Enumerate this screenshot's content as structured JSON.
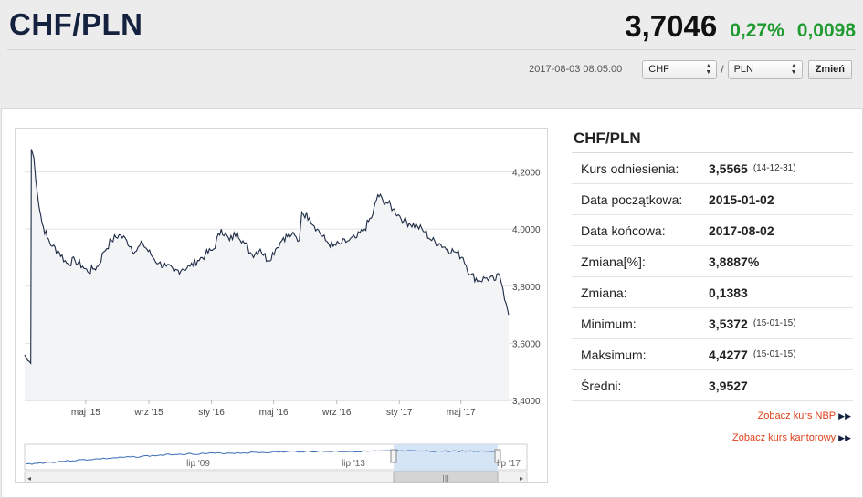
{
  "header": {
    "pair": "CHF/PLN",
    "rate": "3,7046",
    "change_pct": "0,27%",
    "change_abs": "0,0098",
    "timestamp": "2017-08-03 08:05:00"
  },
  "controls": {
    "base_currency": "CHF",
    "separator": "/",
    "quote_currency": "PLN",
    "change_label": "Zmień"
  },
  "colors": {
    "line": "#1d2b45",
    "area": "#f3f4f6",
    "positive": "#1e9a2f",
    "link": "#e0401b",
    "navigator_selection": "#cfe0f5"
  },
  "stats": {
    "title": "CHF/PLN",
    "rows": [
      {
        "label": "Kurs odniesienia:",
        "value": "3,5565",
        "date": "(14-12-31)"
      },
      {
        "label": "Data początkowa:",
        "value": "2015-01-02",
        "date": ""
      },
      {
        "label": "Data końcowa:",
        "value": "2017-08-02",
        "date": ""
      },
      {
        "label": "Zmiana[%]:",
        "value": "3,8887%",
        "date": ""
      },
      {
        "label": "Zmiana:",
        "value": "0,1383",
        "date": ""
      },
      {
        "label": "Minimum:",
        "value": "3,5372",
        "date": "(15-01-15)"
      },
      {
        "label": "Maksimum:",
        "value": "4,4277",
        "date": "(15-01-15)"
      },
      {
        "label": "Średni:",
        "value": "3,9527",
        "date": ""
      }
    ],
    "link_nbp": "Zobacz kurs NBP",
    "link_kantor": "Zobacz kurs kantorowy"
  },
  "chart_data": {
    "type": "area",
    "x_start": "2015-01-02",
    "x_end": "2017-08-02",
    "ylim": [
      3.4,
      4.32
    ],
    "y_ticks": [
      "4,2000",
      "4,0000",
      "3,8000",
      "3,6000",
      "3,4000"
    ],
    "y_tick_values": [
      4.2,
      4.0,
      3.8,
      3.6,
      3.4
    ],
    "x_ticks": [
      {
        "label": "maj '15",
        "date": "2015-05-01"
      },
      {
        "label": "wrz '15",
        "date": "2015-09-01"
      },
      {
        "label": "sty '16",
        "date": "2016-01-01"
      },
      {
        "label": "maj '16",
        "date": "2016-05-01"
      },
      {
        "label": "wrz '16",
        "date": "2016-09-01"
      },
      {
        "label": "sty '17",
        "date": "2017-01-01"
      },
      {
        "label": "maj '17",
        "date": "2017-05-01"
      }
    ],
    "series": [
      {
        "points": [
          [
            "2015-01-02",
            3.56
          ],
          [
            "2015-01-08",
            3.54
          ],
          [
            "2015-01-14",
            3.53
          ],
          [
            "2015-01-15",
            4.28
          ],
          [
            "2015-01-20",
            4.25
          ],
          [
            "2015-01-27",
            4.12
          ],
          [
            "2015-02-05",
            4.02
          ],
          [
            "2015-02-15",
            3.97
          ],
          [
            "2015-02-25",
            3.94
          ],
          [
            "2015-03-10",
            3.92
          ],
          [
            "2015-03-25",
            3.88
          ],
          [
            "2015-04-10",
            3.89
          ],
          [
            "2015-04-25",
            3.87
          ],
          [
            "2015-05-05",
            3.85
          ],
          [
            "2015-05-15",
            3.86
          ],
          [
            "2015-05-25",
            3.87
          ],
          [
            "2015-06-05",
            3.92
          ],
          [
            "2015-06-20",
            3.96
          ],
          [
            "2015-07-05",
            3.98
          ],
          [
            "2015-07-20",
            3.96
          ],
          [
            "2015-08-05",
            3.92
          ],
          [
            "2015-08-20",
            3.95
          ],
          [
            "2015-09-05",
            3.91
          ],
          [
            "2015-09-20",
            3.88
          ],
          [
            "2015-10-05",
            3.87
          ],
          [
            "2015-10-20",
            3.85
          ],
          [
            "2015-11-05",
            3.86
          ],
          [
            "2015-11-20",
            3.87
          ],
          [
            "2015-12-05",
            3.89
          ],
          [
            "2015-12-20",
            3.91
          ],
          [
            "2016-01-05",
            3.93
          ],
          [
            "2016-01-20",
            4.0
          ],
          [
            "2016-02-05",
            3.96
          ],
          [
            "2016-02-20",
            3.99
          ],
          [
            "2016-03-05",
            3.95
          ],
          [
            "2016-03-20",
            3.91
          ],
          [
            "2016-04-05",
            3.93
          ],
          [
            "2016-04-20",
            3.89
          ],
          [
            "2016-05-05",
            3.93
          ],
          [
            "2016-05-20",
            3.97
          ],
          [
            "2016-06-05",
            3.98
          ],
          [
            "2016-06-20",
            3.96
          ],
          [
            "2016-06-25",
            4.06
          ],
          [
            "2016-07-10",
            4.04
          ],
          [
            "2016-07-25",
            4.0
          ],
          [
            "2016-08-10",
            3.96
          ],
          [
            "2016-08-25",
            3.94
          ],
          [
            "2016-09-10",
            3.95
          ],
          [
            "2016-09-25",
            3.96
          ],
          [
            "2016-10-10",
            3.97
          ],
          [
            "2016-10-25",
            4.0
          ],
          [
            "2016-11-10",
            4.05
          ],
          [
            "2016-11-20",
            4.12
          ],
          [
            "2016-11-30",
            4.1
          ],
          [
            "2016-12-10",
            4.09
          ],
          [
            "2016-12-20",
            4.07
          ],
          [
            "2016-12-30",
            4.05
          ],
          [
            "2017-01-10",
            4.03
          ],
          [
            "2017-01-20",
            4.02
          ],
          [
            "2017-02-05",
            4.01
          ],
          [
            "2017-02-20",
            3.99
          ],
          [
            "2017-03-05",
            3.96
          ],
          [
            "2017-03-20",
            3.95
          ],
          [
            "2017-04-05",
            3.93
          ],
          [
            "2017-04-20",
            3.92
          ],
          [
            "2017-05-05",
            3.9
          ],
          [
            "2017-05-20",
            3.84
          ],
          [
            "2017-06-05",
            3.82
          ],
          [
            "2017-06-20",
            3.83
          ],
          [
            "2017-07-05",
            3.82
          ],
          [
            "2017-07-15",
            3.84
          ],
          [
            "2017-07-22",
            3.79
          ],
          [
            "2017-07-28",
            3.74
          ],
          [
            "2017-08-02",
            3.7
          ]
        ]
      }
    ],
    "navigator": {
      "x_ticks": [
        "lip '09",
        "lip '13",
        "lip '17"
      ],
      "selection": [
        "2015-01-02",
        "2017-08-02"
      ]
    }
  }
}
